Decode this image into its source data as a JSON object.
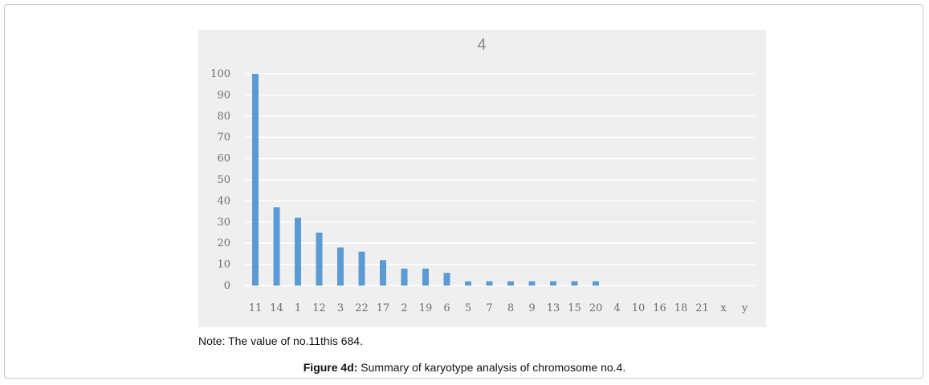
{
  "chart_data": {
    "type": "bar",
    "title": "4",
    "xlabel": "",
    "ylabel": "",
    "categories": [
      "11",
      "14",
      "1",
      "12",
      "3",
      "22",
      "17",
      "2",
      "19",
      "6",
      "5",
      "7",
      "8",
      "9",
      "13",
      "15",
      "20",
      "4",
      "10",
      "16",
      "18",
      "21",
      "x",
      "y"
    ],
    "values": [
      100,
      37,
      32,
      25,
      18,
      16,
      12,
      8,
      8,
      6,
      2,
      2,
      2,
      2,
      2,
      2,
      2,
      0,
      0,
      0,
      0,
      0,
      0,
      0
    ],
    "ylim": [
      0,
      100
    ],
    "yticks": [
      "0",
      "10",
      "20",
      "30",
      "40",
      "50",
      "60",
      "70",
      "80",
      "90",
      "100"
    ],
    "grid": true,
    "bar_color": "#5b9bd5"
  },
  "note": "Note: The value of no.11this 684.",
  "caption": {
    "label": "Figure 4d:",
    "text": " Summary of karyotype analysis of chromosome no.4."
  }
}
